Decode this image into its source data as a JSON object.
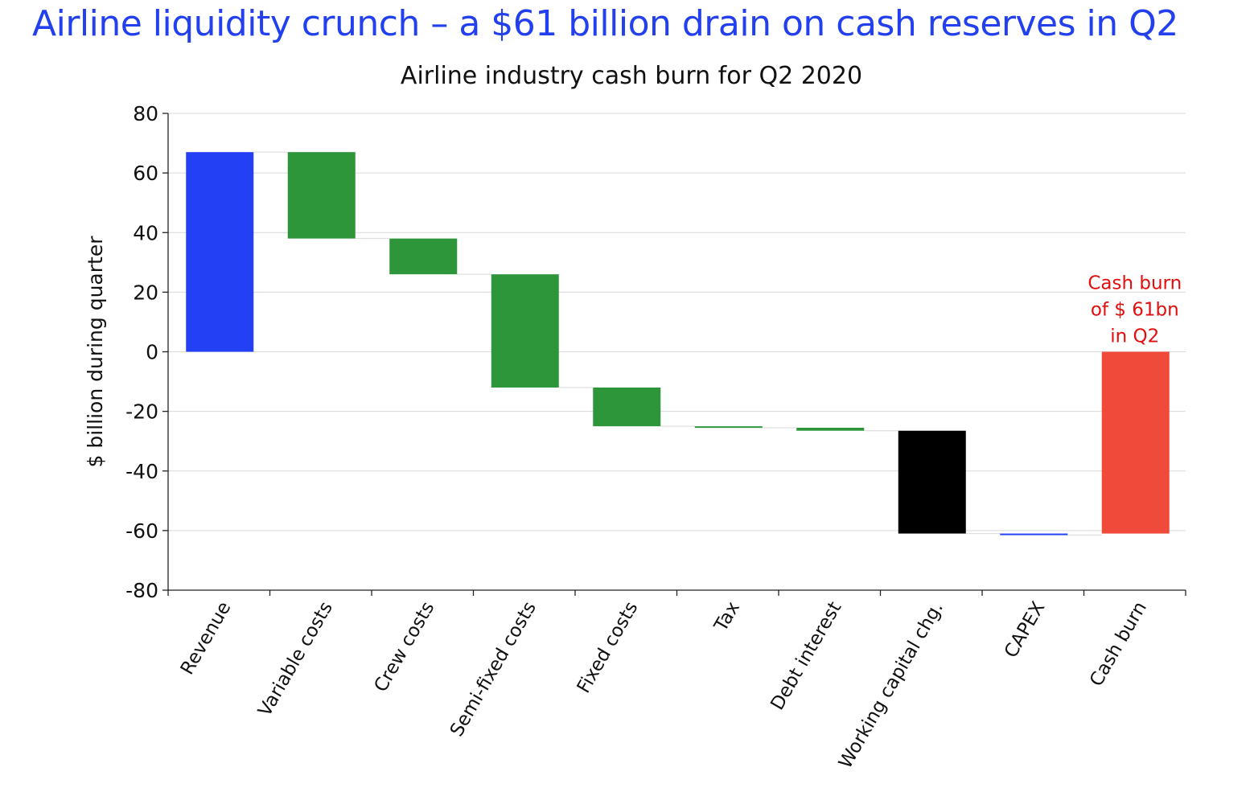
{
  "headline": "Airline liquidity crunch – a $61 billion drain on cash reserves in Q2",
  "chart_data": {
    "type": "waterfall",
    "title": "Airline industry cash burn for Q2 2020",
    "xlabel": "",
    "ylabel": "$ billion during quarter",
    "ylim": [
      -80,
      80
    ],
    "yticks": [
      80,
      60,
      40,
      20,
      0,
      -20,
      -40,
      -60,
      -80
    ],
    "ytick_labels": [
      "80",
      "60",
      "40",
      "20",
      "0",
      "-20",
      "-40",
      "-60",
      "-80"
    ],
    "grid": true,
    "categories": [
      "Revenue",
      "Variable costs",
      "Crew costs",
      "Semi-fixed costs",
      "Fixed costs",
      "Tax",
      "Debt interest",
      "Working capital chg.",
      "CAPEX",
      "Cash burn"
    ],
    "bars": [
      {
        "label": "Revenue",
        "start": 0,
        "end": 67,
        "color": "#2340f5"
      },
      {
        "label": "Variable costs",
        "start": 67,
        "end": 38,
        "color": "#2e963a"
      },
      {
        "label": "Crew costs",
        "start": 38,
        "end": 26,
        "color": "#2e963a"
      },
      {
        "label": "Semi-fixed costs",
        "start": 26,
        "end": -12,
        "color": "#2e963a"
      },
      {
        "label": "Fixed costs",
        "start": -12,
        "end": -25,
        "color": "#2e963a"
      },
      {
        "label": "Tax",
        "start": -25,
        "end": -25.5,
        "color": "#2e963a"
      },
      {
        "label": "Debt interest",
        "start": -25.5,
        "end": -26.5,
        "color": "#2e963a"
      },
      {
        "label": "Working capital chg.",
        "start": -26.5,
        "end": -61,
        "color": "#000000"
      },
      {
        "label": "CAPEX",
        "start": -61,
        "end": -61.5,
        "color": "#2340f5"
      },
      {
        "label": "Cash burn",
        "start": 0,
        "end": -61,
        "color": "#ef4a3a"
      }
    ],
    "annotation": {
      "lines": [
        "Cash burn",
        "of $ 61bn",
        "in Q2"
      ],
      "color": "#e30d0d"
    }
  }
}
